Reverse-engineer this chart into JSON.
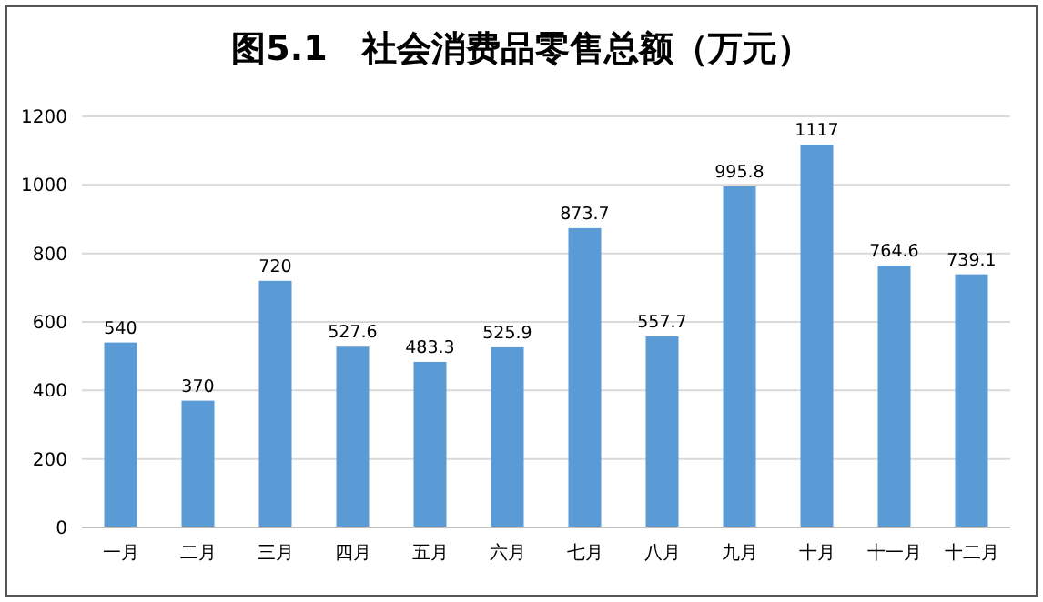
{
  "chart_data": {
    "type": "bar",
    "title": "图5.1　社会消费品零售总额（万元）",
    "categories": [
      "一月",
      "二月",
      "三月",
      "四月",
      "五月",
      "六月",
      "七月",
      "八月",
      "九月",
      "十月",
      "十一月",
      "十二月"
    ],
    "values": [
      540,
      370,
      720,
      527.6,
      483.3,
      525.9,
      873.7,
      557.7,
      995.8,
      1117,
      764.6,
      739.1
    ],
    "color": "#5b9bd5",
    "ylim": [
      0,
      1200
    ],
    "yticks": [
      0,
      200,
      400,
      600,
      800,
      1000,
      1200
    ],
    "grid": "y",
    "data_labels": true
  }
}
